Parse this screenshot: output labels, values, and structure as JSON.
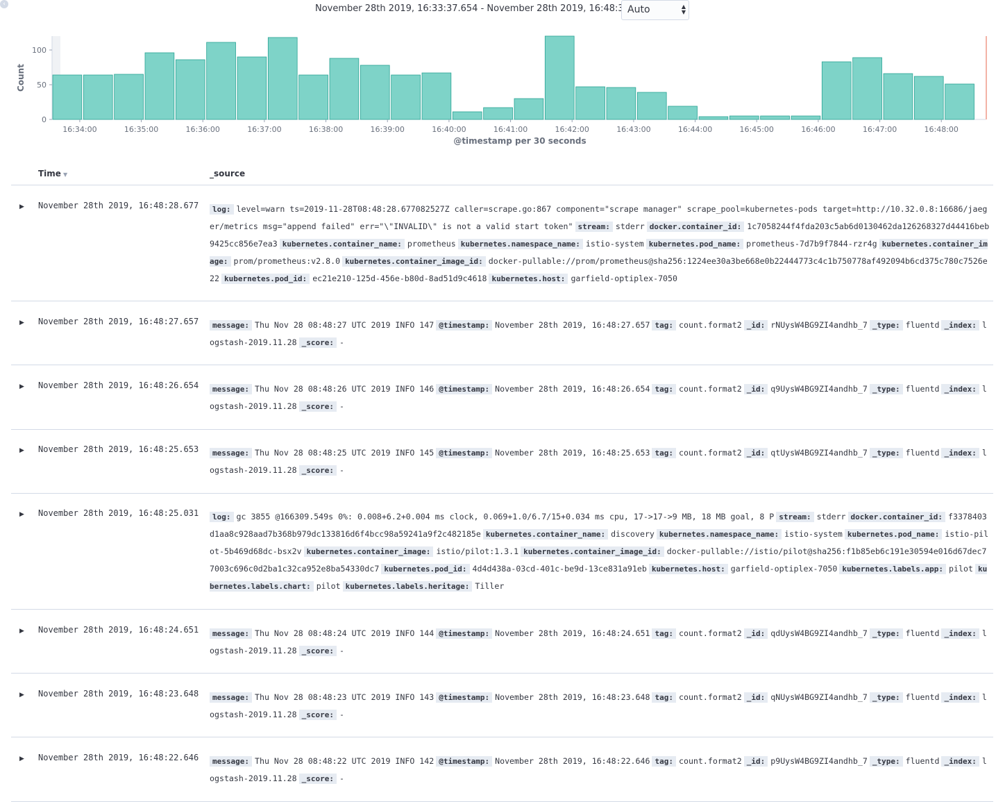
{
  "timebar": {
    "range_text": "November 28th 2019, 16:33:37.654 - November 28th 2019, 16:48:37.654 —",
    "interval_value": "Auto"
  },
  "chart_data": {
    "type": "bar",
    "ylabel": "Count",
    "xlabel": "@timestamp per 30 seconds",
    "ylim": [
      0,
      120
    ],
    "yticks": [
      0,
      50,
      100
    ],
    "xticks": [
      "16:34:00",
      "16:35:00",
      "16:36:00",
      "16:37:00",
      "16:38:00",
      "16:39:00",
      "16:40:00",
      "16:41:00",
      "16:42:00",
      "16:43:00",
      "16:44:00",
      "16:45:00",
      "16:46:00",
      "16:47:00",
      "16:48:00"
    ],
    "bar_color": "#7ed3c8",
    "bar_stroke": "#2aa394",
    "values": [
      64,
      64,
      65,
      96,
      86,
      111,
      90,
      118,
      64,
      88,
      78,
      64,
      67,
      11,
      17,
      30,
      120,
      47,
      46,
      39,
      19,
      4,
      5,
      5,
      5,
      83,
      89,
      66,
      62,
      51
    ]
  },
  "table": {
    "col_time": "Time",
    "col_source": "_source"
  },
  "rows": [
    {
      "time": "November 28th 2019, 16:48:28.677",
      "fields": [
        {
          "k": "log:",
          "v": "level=warn ts=2019-11-28T08:48:28.677082527Z caller=scrape.go:867 component=\"scrape manager\" scrape_pool=kubernetes-pods target=http://10.32.0.8:16686/jaeger/metrics msg=\"append failed\" err=\"\\\"INVALID\\\" is not a valid start token\""
        },
        {
          "k": "stream:",
          "v": "stderr"
        },
        {
          "k": "docker.container_id:",
          "v": "1c7058244f4fda203c5ab6d0130462da126268327d44416beb9425cc856e7ea3"
        },
        {
          "k": "kubernetes.container_name:",
          "v": "prometheus"
        },
        {
          "k": "kubernetes.namespace_name:",
          "v": "istio-system"
        },
        {
          "k": "kubernetes.pod_name:",
          "v": "prometheus-7d7b9f7844-rzr4g"
        },
        {
          "k": "kubernetes.container_image:",
          "v": "prom/prometheus:v2.8.0"
        },
        {
          "k": "kubernetes.container_image_id:",
          "v": "docker-pullable://prom/prometheus@sha256:1224ee30a3be668e0b22444773c4c1b750778af492094b6cd375c780c7526e22"
        },
        {
          "k": "kubernetes.pod_id:",
          "v": "ec21e210-125d-456e-b80d-8ad51d9c4618"
        },
        {
          "k": "kubernetes.host:",
          "v": "garfield-optiplex-7050"
        }
      ]
    },
    {
      "time": "November 28th 2019, 16:48:27.657",
      "fields": [
        {
          "k": "message:",
          "v": "Thu Nov 28 08:48:27 UTC 2019 INFO 147"
        },
        {
          "k": "@timestamp:",
          "v": "November 28th 2019, 16:48:27.657"
        },
        {
          "k": "tag:",
          "v": "count.format2"
        },
        {
          "k": "_id:",
          "v": "rNUysW4BG9ZI4andhb_7"
        },
        {
          "k": "_type:",
          "v": "fluentd"
        },
        {
          "k": "_index:",
          "v": "logstash-2019.11.28"
        },
        {
          "k": "_score:",
          "v": "-"
        }
      ]
    },
    {
      "time": "November 28th 2019, 16:48:26.654",
      "fields": [
        {
          "k": "message:",
          "v": "Thu Nov 28 08:48:26 UTC 2019 INFO 146"
        },
        {
          "k": "@timestamp:",
          "v": "November 28th 2019, 16:48:26.654"
        },
        {
          "k": "tag:",
          "v": "count.format2"
        },
        {
          "k": "_id:",
          "v": "q9UysW4BG9ZI4andhb_7"
        },
        {
          "k": "_type:",
          "v": "fluentd"
        },
        {
          "k": "_index:",
          "v": "logstash-2019.11.28"
        },
        {
          "k": "_score:",
          "v": "-"
        }
      ]
    },
    {
      "time": "November 28th 2019, 16:48:25.653",
      "fields": [
        {
          "k": "message:",
          "v": "Thu Nov 28 08:48:25 UTC 2019 INFO 145"
        },
        {
          "k": "@timestamp:",
          "v": "November 28th 2019, 16:48:25.653"
        },
        {
          "k": "tag:",
          "v": "count.format2"
        },
        {
          "k": "_id:",
          "v": "qtUysW4BG9ZI4andhb_7"
        },
        {
          "k": "_type:",
          "v": "fluentd"
        },
        {
          "k": "_index:",
          "v": "logstash-2019.11.28"
        },
        {
          "k": "_score:",
          "v": "-"
        }
      ]
    },
    {
      "time": "November 28th 2019, 16:48:25.031",
      "fields": [
        {
          "k": "log:",
          "v": "gc 3855 @166309.549s 0%: 0.008+6.2+0.004 ms clock, 0.069+1.0/6.7/15+0.034 ms cpu, 17->17->9 MB, 18 MB goal, 8 P"
        },
        {
          "k": "stream:",
          "v": "stderr"
        },
        {
          "k": "docker.container_id:",
          "v": "f3378403d1aa8c928aad7b368b979dc133816d6f4bcc98a59241a9f2c482185e"
        },
        {
          "k": "kubernetes.container_name:",
          "v": "discovery"
        },
        {
          "k": "kubernetes.namespace_name:",
          "v": "istio-system"
        },
        {
          "k": "kubernetes.pod_name:",
          "v": "istio-pilot-5b469d68dc-bsx2v"
        },
        {
          "k": "kubernetes.container_image:",
          "v": "istio/pilot:1.3.1"
        },
        {
          "k": "kubernetes.container_image_id:",
          "v": "docker-pullable://istio/pilot@sha256:f1b85eb6c191e30594e016d67dec77003c696c0d2ba1c32ca952e8ba54330dc7"
        },
        {
          "k": "kubernetes.pod_id:",
          "v": "4d4d438a-03cd-401c-be9d-13ce831a91eb"
        },
        {
          "k": "kubernetes.host:",
          "v": "garfield-optiplex-7050"
        },
        {
          "k": "kubernetes.labels.app:",
          "v": "pilot"
        },
        {
          "k": "kubernetes.labels.chart:",
          "v": "pilot"
        },
        {
          "k": "kubernetes.labels.heritage:",
          "v": "Tiller"
        }
      ]
    },
    {
      "time": "November 28th 2019, 16:48:24.651",
      "fields": [
        {
          "k": "message:",
          "v": "Thu Nov 28 08:48:24 UTC 2019 INFO 144"
        },
        {
          "k": "@timestamp:",
          "v": "November 28th 2019, 16:48:24.651"
        },
        {
          "k": "tag:",
          "v": "count.format2"
        },
        {
          "k": "_id:",
          "v": "qdUysW4BG9ZI4andhb_7"
        },
        {
          "k": "_type:",
          "v": "fluentd"
        },
        {
          "k": "_index:",
          "v": "logstash-2019.11.28"
        },
        {
          "k": "_score:",
          "v": "-"
        }
      ]
    },
    {
      "time": "November 28th 2019, 16:48:23.648",
      "fields": [
        {
          "k": "message:",
          "v": "Thu Nov 28 08:48:23 UTC 2019 INFO 143"
        },
        {
          "k": "@timestamp:",
          "v": "November 28th 2019, 16:48:23.648"
        },
        {
          "k": "tag:",
          "v": "count.format2"
        },
        {
          "k": "_id:",
          "v": "qNUysW4BG9ZI4andhb_7"
        },
        {
          "k": "_type:",
          "v": "fluentd"
        },
        {
          "k": "_index:",
          "v": "logstash-2019.11.28"
        },
        {
          "k": "_score:",
          "v": "-"
        }
      ]
    },
    {
      "time": "November 28th 2019, 16:48:22.646",
      "fields": [
        {
          "k": "message:",
          "v": "Thu Nov 28 08:48:22 UTC 2019 INFO 142"
        },
        {
          "k": "@timestamp:",
          "v": "November 28th 2019, 16:48:22.646"
        },
        {
          "k": "tag:",
          "v": "count.format2"
        },
        {
          "k": "_id:",
          "v": "p9UysW4BG9ZI4andhb_7"
        },
        {
          "k": "_type:",
          "v": "fluentd"
        },
        {
          "k": "_index:",
          "v": "logstash-2019.11.28"
        },
        {
          "k": "_score:",
          "v": "-"
        }
      ]
    }
  ]
}
